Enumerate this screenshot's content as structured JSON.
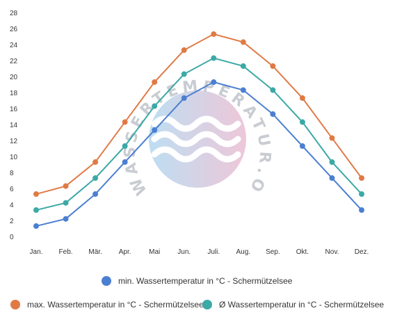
{
  "chart_data": {
    "type": "line",
    "categories": [
      "Jan.",
      "Feb.",
      "Mär.",
      "Apr.",
      "Mai",
      "Jun.",
      "Juli.",
      "Aug.",
      "Sep.",
      "Okt.",
      "Nov.",
      "Dez."
    ],
    "ylim": [
      0,
      28
    ],
    "yticks": [
      0,
      2,
      4,
      6,
      8,
      10,
      12,
      14,
      16,
      18,
      20,
      22,
      24,
      26,
      28
    ],
    "grid": false,
    "legend_placement": "bottom",
    "series": [
      {
        "name": "min. Wassertemperatur in °C - Schermützelsee",
        "color": "#4b7fd1",
        "values": [
          1.3,
          2.2,
          5.3,
          9.3,
          13.3,
          17.3,
          19.3,
          18.3,
          15.3,
          11.3,
          7.3,
          3.3
        ]
      },
      {
        "name": "max. Wassertemperatur in °C - Schermützelsee",
        "color": "#e07a45",
        "values": [
          5.3,
          6.3,
          9.3,
          14.3,
          19.3,
          23.3,
          25.3,
          24.3,
          21.3,
          17.3,
          12.3,
          7.3
        ]
      },
      {
        "name": "Ø Wassertemperatur in °C - Schermützelsee",
        "color": "#3ba9a6",
        "values": [
          3.3,
          4.2,
          7.3,
          11.3,
          16.3,
          20.3,
          22.3,
          21.3,
          18.3,
          14.3,
          9.3,
          5.3
        ]
      }
    ]
  },
  "watermark": {
    "text": "WASSERTEMPERATUR.ORG",
    "gradient_colors": [
      "#a9d3ee",
      "#e8b5cc"
    ]
  }
}
